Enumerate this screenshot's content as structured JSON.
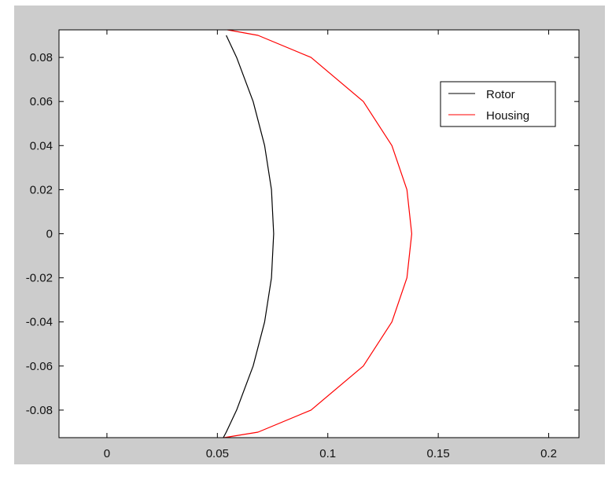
{
  "chart_data": {
    "type": "line",
    "title": "",
    "xlabel": "",
    "ylabel": "",
    "xlim": [
      -0.0217,
      0.2137
    ],
    "ylim": [
      -0.0925,
      0.0925
    ],
    "xticks": [
      0,
      0.05,
      0.1,
      0.15,
      0.2
    ],
    "xtick_labels": [
      "0",
      "0.05",
      "0.1",
      "0.15",
      "0.2"
    ],
    "yticks": [
      0.08,
      0.06,
      0.04,
      0.02,
      0,
      -0.02,
      -0.04,
      -0.06,
      -0.08
    ],
    "ytick_labels": [
      "0.08",
      "0.06",
      "0.04",
      "0.02",
      "0",
      "-0.02",
      "-0.04",
      "-0.06",
      "-0.08"
    ],
    "grid": false,
    "legend_position": "top-right",
    "background": "#cccccc",
    "series": [
      {
        "name": "Rotor",
        "color": "#000000",
        "x": [
          0.054,
          0.0587,
          0.0662,
          0.0714,
          0.0745,
          0.0755,
          0.0745,
          0.0714,
          0.0662,
          0.0587,
          0.054,
          0.0527
        ],
        "y": [
          0.09,
          0.08,
          0.06,
          0.04,
          0.02,
          0,
          -0.02,
          -0.04,
          -0.06,
          -0.08,
          -0.09,
          -0.0925
        ]
      },
      {
        "name": "Housing",
        "color": "#ff0000",
        "x": [
          0.0546,
          0.0684,
          0.0924,
          0.1161,
          0.129,
          0.1358,
          0.138,
          0.1358,
          0.129,
          0.1161,
          0.0924,
          0.0684,
          0.053
        ],
        "y": [
          0.0925,
          0.09,
          0.08,
          0.06,
          0.04,
          0.02,
          0,
          -0.02,
          -0.04,
          -0.06,
          -0.08,
          -0.09,
          -0.0925
        ]
      }
    ]
  }
}
